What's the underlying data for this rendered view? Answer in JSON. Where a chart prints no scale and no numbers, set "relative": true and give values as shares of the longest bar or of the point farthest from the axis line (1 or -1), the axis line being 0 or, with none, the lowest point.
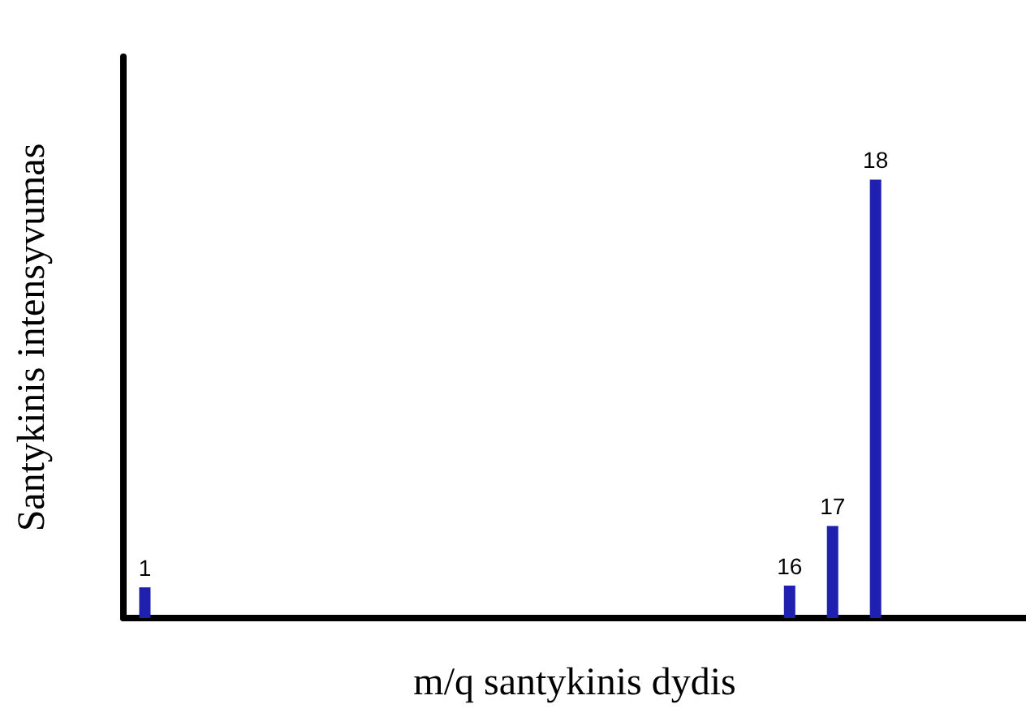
{
  "chart_data": {
    "type": "bar",
    "xlabel": "m/q santykinis dydis",
    "ylabel": "Santykinis intensyvumas",
    "relative": true,
    "categories": [
      "1",
      null,
      null,
      null,
      null,
      null,
      null,
      null,
      null,
      null,
      null,
      null,
      null,
      null,
      null,
      "16",
      "17",
      "18",
      null,
      null,
      null
    ],
    "series": [
      {
        "color": "#1f1fb0",
        "values": [
          0.07,
          null,
          null,
          null,
          null,
          null,
          null,
          null,
          null,
          null,
          null,
          null,
          null,
          null,
          null,
          0.074,
          0.21,
          1,
          null,
          null,
          null
        ]
      }
    ],
    "tick_labels": false,
    "grid": false
  }
}
